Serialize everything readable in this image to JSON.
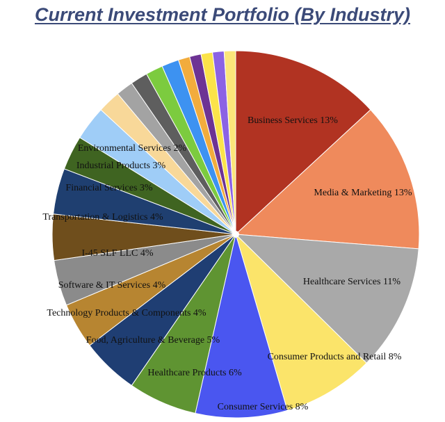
{
  "chart_data": {
    "type": "pie",
    "title": "Current Investment Portfolio (By Industry)",
    "start_angle_deg": 0,
    "direction": "clockwise",
    "slices": [
      {
        "label": "Business Services 13%",
        "name": "Business Services",
        "value": 13,
        "color": "#b13322"
      },
      {
        "label": "Media & Marketing 13%",
        "name": "Media & Marketing",
        "value": 13,
        "color": "#ef8a5c"
      },
      {
        "label": "Healthcare Services 11%",
        "name": "Healthcare Services",
        "value": 11,
        "color": "#a9a9a9"
      },
      {
        "label": "Consumer Products and Retail 8%",
        "name": "Consumer Products and Retail",
        "value": 8,
        "color": "#fbe46a"
      },
      {
        "label": "Consumer Services 8%",
        "name": "Consumer Services",
        "value": 8,
        "color": "#4a56f0"
      },
      {
        "label": "Healthcare Products 6%",
        "name": "Healthcare Products",
        "value": 6,
        "color": "#5f9432"
      },
      {
        "label": "Food, Agriculture & Beverage 5%",
        "name": "Food, Agriculture & Beverage",
        "value": 5,
        "color": "#1f3e73"
      },
      {
        "label": "Technology Products & Components 4%",
        "name": "Technology Products & Components",
        "value": 4,
        "color": "#b78531"
      },
      {
        "label": "Software & IT Services 4%",
        "name": "Software & IT Services",
        "value": 4,
        "color": "#8b8b8b"
      },
      {
        "label": "I-45 SLF LLC 4%",
        "name": "I-45 SLF LLC",
        "value": 4,
        "color": "#6f4e1c"
      },
      {
        "label": "Transportation & Logistics 4%",
        "name": "Transportation & Logistics",
        "value": 4,
        "color": "#1f3f70"
      },
      {
        "label": "Financial Services 3%",
        "name": "Financial Services",
        "value": 3,
        "color": "#3f6421"
      },
      {
        "label": "Industrial Products 3%",
        "name": "Industrial Products",
        "value": 3,
        "color": "#9fcdf7"
      },
      {
        "label": "Environmental Services 2%",
        "name": "Environmental Services",
        "value": 2,
        "color": "#f8d899"
      },
      {
        "label": "",
        "name": "",
        "value": 1.5,
        "color": "#a3a3a3"
      },
      {
        "label": "",
        "name": "",
        "value": 1.5,
        "color": "#5e5e5e"
      },
      {
        "label": "",
        "name": "",
        "value": 1.5,
        "color": "#7ccb3f"
      },
      {
        "label": "",
        "name": "",
        "value": 1.5,
        "color": "#3d92f1"
      },
      {
        "label": "",
        "name": "",
        "value": 1,
        "color": "#f2ac3d"
      },
      {
        "label": "",
        "name": "",
        "value": 1,
        "color": "#6d3394"
      },
      {
        "label": "",
        "name": "",
        "value": 1,
        "color": "#fbe34a"
      },
      {
        "label": "",
        "name": "",
        "value": 1,
        "color": "#8b62e4"
      },
      {
        "label": "",
        "name": "",
        "value": 1,
        "color": "#fbe67a"
      }
    ]
  }
}
